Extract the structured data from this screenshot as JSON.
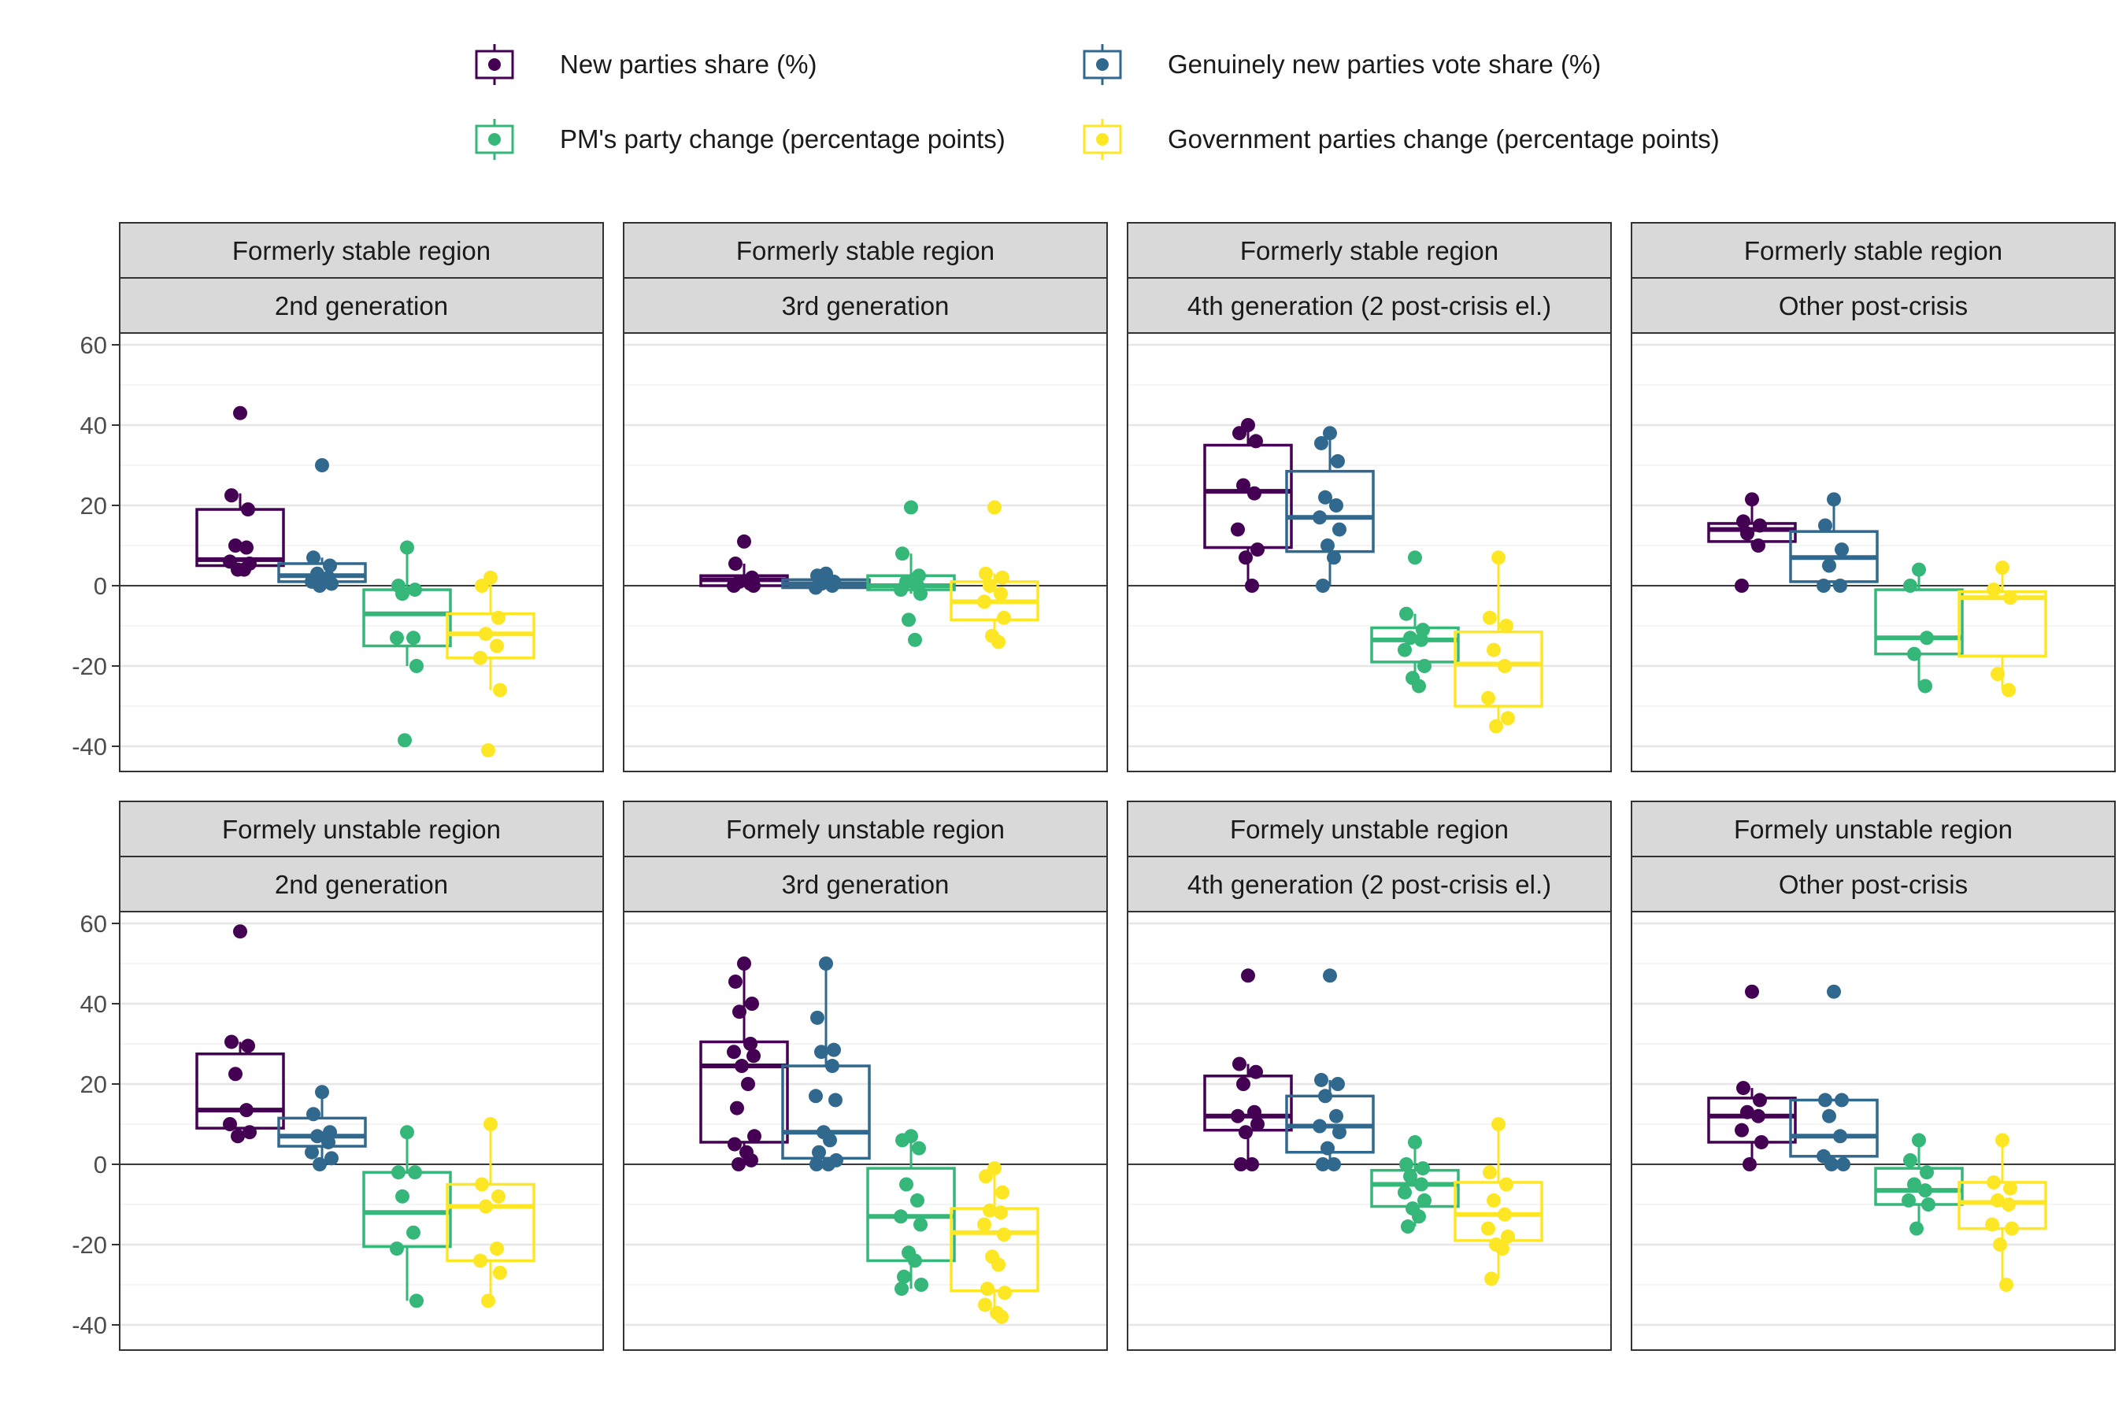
{
  "legend": {
    "items": [
      {
        "label": "New parties share (%)",
        "color": "#440154"
      },
      {
        "label": "Genuinely new parties vote share (%)",
        "color": "#31688E"
      },
      {
        "label": "PM's party change (percentage points)",
        "color": "#35B779"
      },
      {
        "label": "Government parties change (percentage points)",
        "color": "#FDE725"
      }
    ]
  },
  "chart_data": {
    "type": "box",
    "ylim": [
      -46,
      63
    ],
    "y_ticks": [
      "60",
      "40",
      "20",
      "0",
      "-20",
      "-40"
    ],
    "y_tick_values": [
      60,
      40,
      20,
      0,
      -20,
      -40
    ],
    "grid": "on",
    "reference_line": 0,
    "legend_position": "top",
    "series": [
      "New parties share (%)",
      "Genuinely new parties vote share (%)",
      "PM's party change (percentage points)",
      "Government parties change (percentage points)"
    ],
    "panels": [
      {
        "region": "Formerly stable region",
        "generation": "2nd generation",
        "boxes": [
          {
            "q1": 5,
            "median": 6.5,
            "q3": 19,
            "lower": 4,
            "upper": 23,
            "points": [
              43,
              22.5,
              19,
              10,
              9.5,
              6,
              5.5,
              4,
              4
            ]
          },
          {
            "q1": 1,
            "median": 2.5,
            "q3": 5.5,
            "lower": 0,
            "upper": 7,
            "points": [
              30,
              7,
              5,
              3,
              2,
              1,
              0.5,
              0
            ]
          },
          {
            "q1": -15,
            "median": -7,
            "q3": -1,
            "lower": -20,
            "upper": 9.5,
            "points": [
              9.5,
              0,
              -1,
              -2,
              -13,
              -13,
              -20,
              -38.5
            ]
          },
          {
            "q1": -18,
            "median": -12,
            "q3": -7,
            "lower": -26,
            "upper": 2,
            "points": [
              2,
              0,
              -8,
              -12,
              -15,
              -18,
              -26,
              -41
            ]
          }
        ]
      },
      {
        "region": "Formerly stable region",
        "generation": "3rd generation",
        "boxes": [
          {
            "q1": 0,
            "median": 1.5,
            "q3": 2.5,
            "lower": 0,
            "upper": 5.5,
            "points": [
              11,
              5.5,
              2,
              1,
              0.5,
              0,
              0
            ]
          },
          {
            "q1": -0.5,
            "median": 0.5,
            "q3": 1.5,
            "lower": -0.5,
            "upper": 3,
            "points": [
              3,
              2.5,
              1,
              0.5,
              0,
              -0.5
            ]
          },
          {
            "q1": -1,
            "median": 0,
            "q3": 2.5,
            "lower": -2,
            "upper": 8,
            "points": [
              19.5,
              8,
              2.5,
              1,
              0,
              -1,
              -2,
              -8.5,
              -13.5
            ]
          },
          {
            "q1": -8.5,
            "median": -4,
            "q3": 1,
            "lower": -14,
            "upper": 3,
            "points": [
              19.5,
              3,
              2,
              0,
              -2,
              -4,
              -8,
              -12.5,
              -14
            ]
          }
        ]
      },
      {
        "region": "Formerly stable region",
        "generation": "4th generation (2 post-crisis el.)",
        "boxes": [
          {
            "q1": 9.5,
            "median": 23.5,
            "q3": 35,
            "lower": 0,
            "upper": 40,
            "points": [
              40,
              38,
              36,
              25,
              23,
              14,
              9,
              7,
              0
            ]
          },
          {
            "q1": 8.5,
            "median": 17,
            "q3": 28.5,
            "lower": 0,
            "upper": 38,
            "points": [
              38,
              35.5,
              31,
              22,
              20,
              17,
              14,
              10,
              7,
              0
            ]
          },
          {
            "q1": -19,
            "median": -13.5,
            "q3": -10.5,
            "lower": -25,
            "upper": -7,
            "points": [
              7,
              -7,
              -11,
              -13,
              -13.5,
              -16,
              -20,
              -23,
              -25
            ]
          },
          {
            "q1": -30,
            "median": -19.5,
            "q3": -11.5,
            "lower": -35,
            "upper": 7,
            "points": [
              7,
              -8,
              -10,
              -16,
              -20,
              -28,
              -33,
              -35
            ]
          }
        ]
      },
      {
        "region": "Formerly stable region",
        "generation": "Other post-crisis",
        "boxes": [
          {
            "q1": 11,
            "median": 14,
            "q3": 15.5,
            "lower": 10,
            "upper": 21.5,
            "points": [
              21.5,
              16,
              15,
              13,
              10,
              0
            ]
          },
          {
            "q1": 1,
            "median": 7,
            "q3": 13.5,
            "lower": 0,
            "upper": 21.5,
            "points": [
              21.5,
              15,
              9,
              5,
              0,
              0
            ]
          },
          {
            "q1": -17,
            "median": -13,
            "q3": -1,
            "lower": -25,
            "upper": 4,
            "points": [
              4,
              0,
              -13,
              -17,
              -25
            ]
          },
          {
            "q1": -17.5,
            "median": -3,
            "q3": -1.5,
            "lower": -26,
            "upper": 4.5,
            "points": [
              4.5,
              -1,
              -3,
              -22,
              -26
            ]
          }
        ]
      },
      {
        "region": "Formely unstable region",
        "generation": "2nd generation",
        "boxes": [
          {
            "q1": 9,
            "median": 13.5,
            "q3": 27.5,
            "lower": 6.5,
            "upper": 30.5,
            "points": [
              58,
              30.5,
              29.5,
              22.5,
              13.5,
              10,
              8,
              7
            ]
          },
          {
            "q1": 4.5,
            "median": 7,
            "q3": 11.5,
            "lower": 0,
            "upper": 18,
            "points": [
              18,
              12.5,
              8,
              7,
              5.5,
              3,
              1.5,
              0
            ]
          },
          {
            "q1": -20.5,
            "median": -12,
            "q3": -2,
            "lower": -34,
            "upper": 8,
            "points": [
              8,
              -2,
              -2,
              -8,
              -17,
              -21,
              -34
            ]
          },
          {
            "q1": -24,
            "median": -10.5,
            "q3": -5,
            "lower": -34,
            "upper": 10,
            "points": [
              10,
              -5,
              -8,
              -10.5,
              -21,
              -24,
              -27,
              -34
            ]
          }
        ]
      },
      {
        "region": "Formely unstable region",
        "generation": "3rd generation",
        "boxes": [
          {
            "q1": 5.5,
            "median": 24.5,
            "q3": 30.5,
            "lower": 0,
            "upper": 50,
            "points": [
              50,
              45.5,
              40,
              38,
              30,
              28,
              27,
              24.5,
              20,
              14,
              7,
              5,
              3,
              1,
              0
            ]
          },
          {
            "q1": 1.5,
            "median": 8,
            "q3": 24.5,
            "lower": 0,
            "upper": 50,
            "points": [
              50,
              36.5,
              28.5,
              28,
              24.5,
              17,
              16,
              8,
              6,
              3,
              1,
              0,
              0
            ]
          },
          {
            "q1": -24,
            "median": -13,
            "q3": -1,
            "lower": -31,
            "upper": 7,
            "points": [
              7,
              6,
              4,
              -5,
              -9,
              -13,
              -15,
              -22,
              -24,
              -28,
              -30,
              -31
            ]
          },
          {
            "q1": -31.5,
            "median": -17,
            "q3": -11,
            "lower": -38,
            "upper": -1,
            "points": [
              -1,
              -3,
              -7,
              -11.5,
              -12,
              -15,
              -17.5,
              -23,
              -25,
              -31,
              -32,
              -35,
              -37,
              -38
            ]
          }
        ]
      },
      {
        "region": "Formely unstable region",
        "generation": "4th generation (2 post-crisis el.)",
        "boxes": [
          {
            "q1": 8.5,
            "median": 12,
            "q3": 22,
            "lower": 0,
            "upper": 25,
            "points": [
              47,
              25,
              23,
              20,
              13,
              12,
              10,
              8,
              0,
              0
            ]
          },
          {
            "q1": 3,
            "median": 9.5,
            "q3": 17,
            "lower": 0,
            "upper": 21,
            "points": [
              47,
              21,
              20,
              17,
              12,
              9.5,
              8,
              4,
              0,
              0
            ]
          },
          {
            "q1": -10.5,
            "median": -5,
            "q3": -1.5,
            "lower": -15.5,
            "upper": 5.5,
            "points": [
              5.5,
              0,
              -1,
              -3,
              -5,
              -7,
              -9,
              -11,
              -13,
              -15.5
            ]
          },
          {
            "q1": -19,
            "median": -12.5,
            "q3": -4.5,
            "lower": -28.5,
            "upper": 10,
            "points": [
              10,
              -2,
              -5,
              -9,
              -12.5,
              -16,
              -18,
              -20,
              -21,
              -28.5
            ]
          }
        ]
      },
      {
        "region": "Formely unstable region",
        "generation": "Other post-crisis",
        "boxes": [
          {
            "q1": 5.5,
            "median": 12,
            "q3": 16.5,
            "lower": 0,
            "upper": 19,
            "points": [
              43,
              19,
              16,
              13,
              12,
              8.5,
              5.5,
              0
            ]
          },
          {
            "q1": 2,
            "median": 7,
            "q3": 16,
            "lower": 0,
            "upper": 16,
            "points": [
              43,
              16,
              16,
              12,
              7,
              2,
              0,
              0
            ]
          },
          {
            "q1": -10,
            "median": -6.5,
            "q3": -1,
            "lower": -16,
            "upper": 6,
            "points": [
              6,
              1,
              -2,
              -5,
              -6.5,
              -9,
              -10,
              -16
            ]
          },
          {
            "q1": -16,
            "median": -9.5,
            "q3": -4.5,
            "lower": -30,
            "upper": 6,
            "points": [
              6,
              -4.5,
              -6,
              -9,
              -10,
              -15,
              -16,
              -20,
              -30
            ]
          }
        ]
      }
    ]
  }
}
